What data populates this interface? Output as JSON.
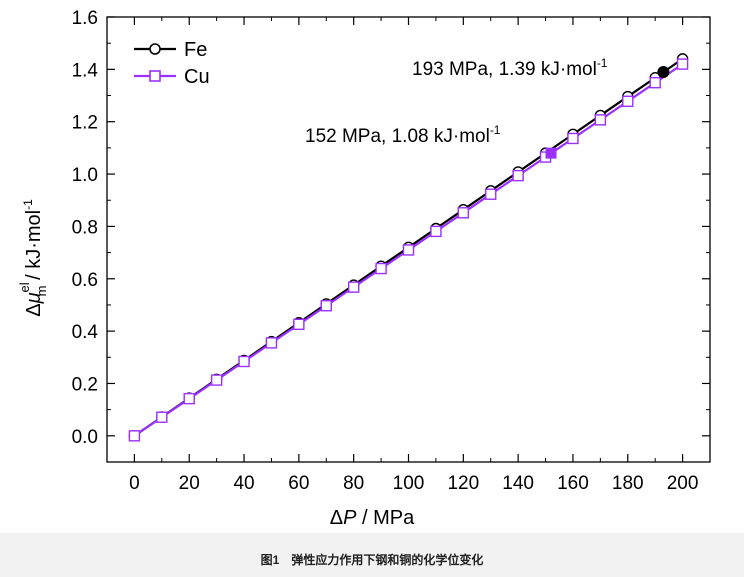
{
  "chart_data": {
    "type": "line",
    "x": [
      0,
      10,
      20,
      30,
      40,
      50,
      60,
      70,
      80,
      90,
      100,
      110,
      120,
      130,
      140,
      150,
      160,
      170,
      180,
      190,
      200
    ],
    "series": [
      {
        "name": "Fe",
        "color": "#000000",
        "marker": "circle",
        "values": [
          0,
          0.072,
          0.144,
          0.216,
          0.288,
          0.36,
          0.432,
          0.504,
          0.576,
          0.648,
          0.72,
          0.792,
          0.864,
          0.936,
          1.008,
          1.08,
          1.152,
          1.224,
          1.296,
          1.368,
          1.44
        ]
      },
      {
        "name": "Cu",
        "color": "#9b30ff",
        "marker": "square",
        "values": [
          0,
          0.071,
          0.142,
          0.213,
          0.284,
          0.355,
          0.426,
          0.497,
          0.568,
          0.639,
          0.71,
          0.781,
          0.852,
          0.923,
          0.994,
          1.065,
          1.136,
          1.207,
          1.278,
          1.349,
          1.42
        ]
      }
    ],
    "highlights": [
      {
        "series": "Fe",
        "x": 193,
        "y": 1.39,
        "text_main": "193 MPa, 1.39 kJ·mol",
        "text_sup": "-1"
      },
      {
        "series": "Cu",
        "x": 152,
        "y": 1.08,
        "text_main": "152 MPa, 1.08 kJ·mol",
        "text_sup": "-1"
      }
    ],
    "xlim": [
      -10,
      210
    ],
    "ylim": [
      -0.1,
      1.6
    ],
    "xticks": [
      0,
      20,
      40,
      60,
      80,
      100,
      120,
      140,
      160,
      180,
      200
    ],
    "xtick_labels": [
      "0",
      "20",
      "40",
      "60",
      "80",
      "100",
      "120",
      "140",
      "160",
      "180",
      "200"
    ],
    "yticks": [
      0.0,
      0.2,
      0.4,
      0.6,
      0.8,
      1.0,
      1.2,
      1.4,
      1.6
    ],
    "ytick_labels": [
      "0.0",
      "0.2",
      "0.4",
      "0.6",
      "0.8",
      "1.0",
      "1.2",
      "1.4",
      "1.6"
    ],
    "xlabel": {
      "delta": "Δ",
      "var": "P",
      "unit": " / MPa"
    },
    "ylabel": {
      "delta": "Δ",
      "var": "μ",
      "sup": "el",
      "sub": "m",
      "unit": " / kJ·mol",
      "unit_sup": "-1"
    },
    "legend": {
      "position": "top-left",
      "entries": [
        "Fe",
        "Cu"
      ]
    },
    "grid": false
  },
  "caption": "图1　弹性应力作用下钢和铜的化学位变化"
}
